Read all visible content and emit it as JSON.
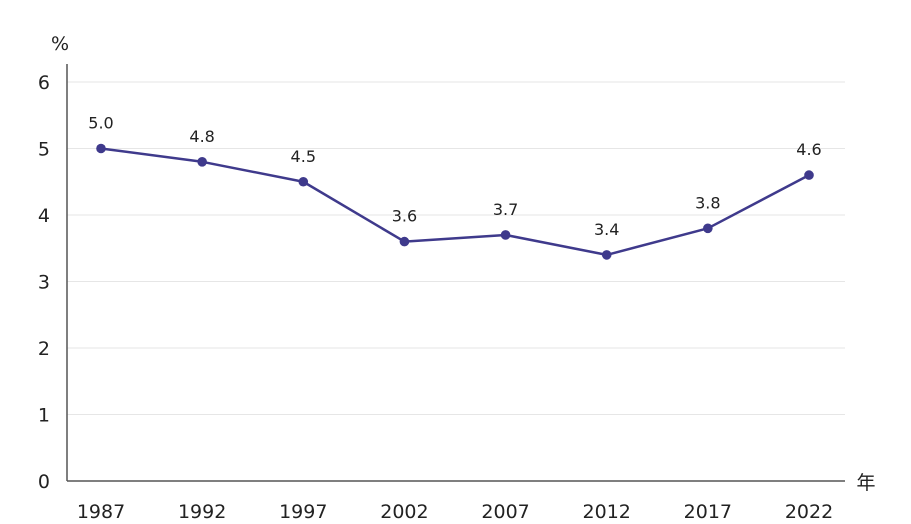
{
  "chart_data": {
    "type": "line",
    "categories": [
      "1987",
      "1992",
      "1997",
      "2002",
      "2007",
      "2012",
      "2017",
      "2022"
    ],
    "series": [
      {
        "values": [
          5.0,
          4.8,
          4.5,
          3.6,
          3.7,
          3.4,
          3.8,
          4.6
        ]
      }
    ],
    "data_labels": [
      "5.0",
      "4.8",
      "4.5",
      "3.6",
      "3.7",
      "3.4",
      "3.8",
      "4.6"
    ],
    "ylim": [
      0,
      6
    ],
    "yticks": [
      "0",
      "1",
      "2",
      "3",
      "4",
      "5",
      "6"
    ],
    "ylabel": "%",
    "xlabel": "年",
    "grid": true,
    "colors": {
      "line": "#3f3a8c",
      "marker": "#3f3a8c",
      "grid": "#e6e6e6",
      "axis": "#555555"
    }
  }
}
